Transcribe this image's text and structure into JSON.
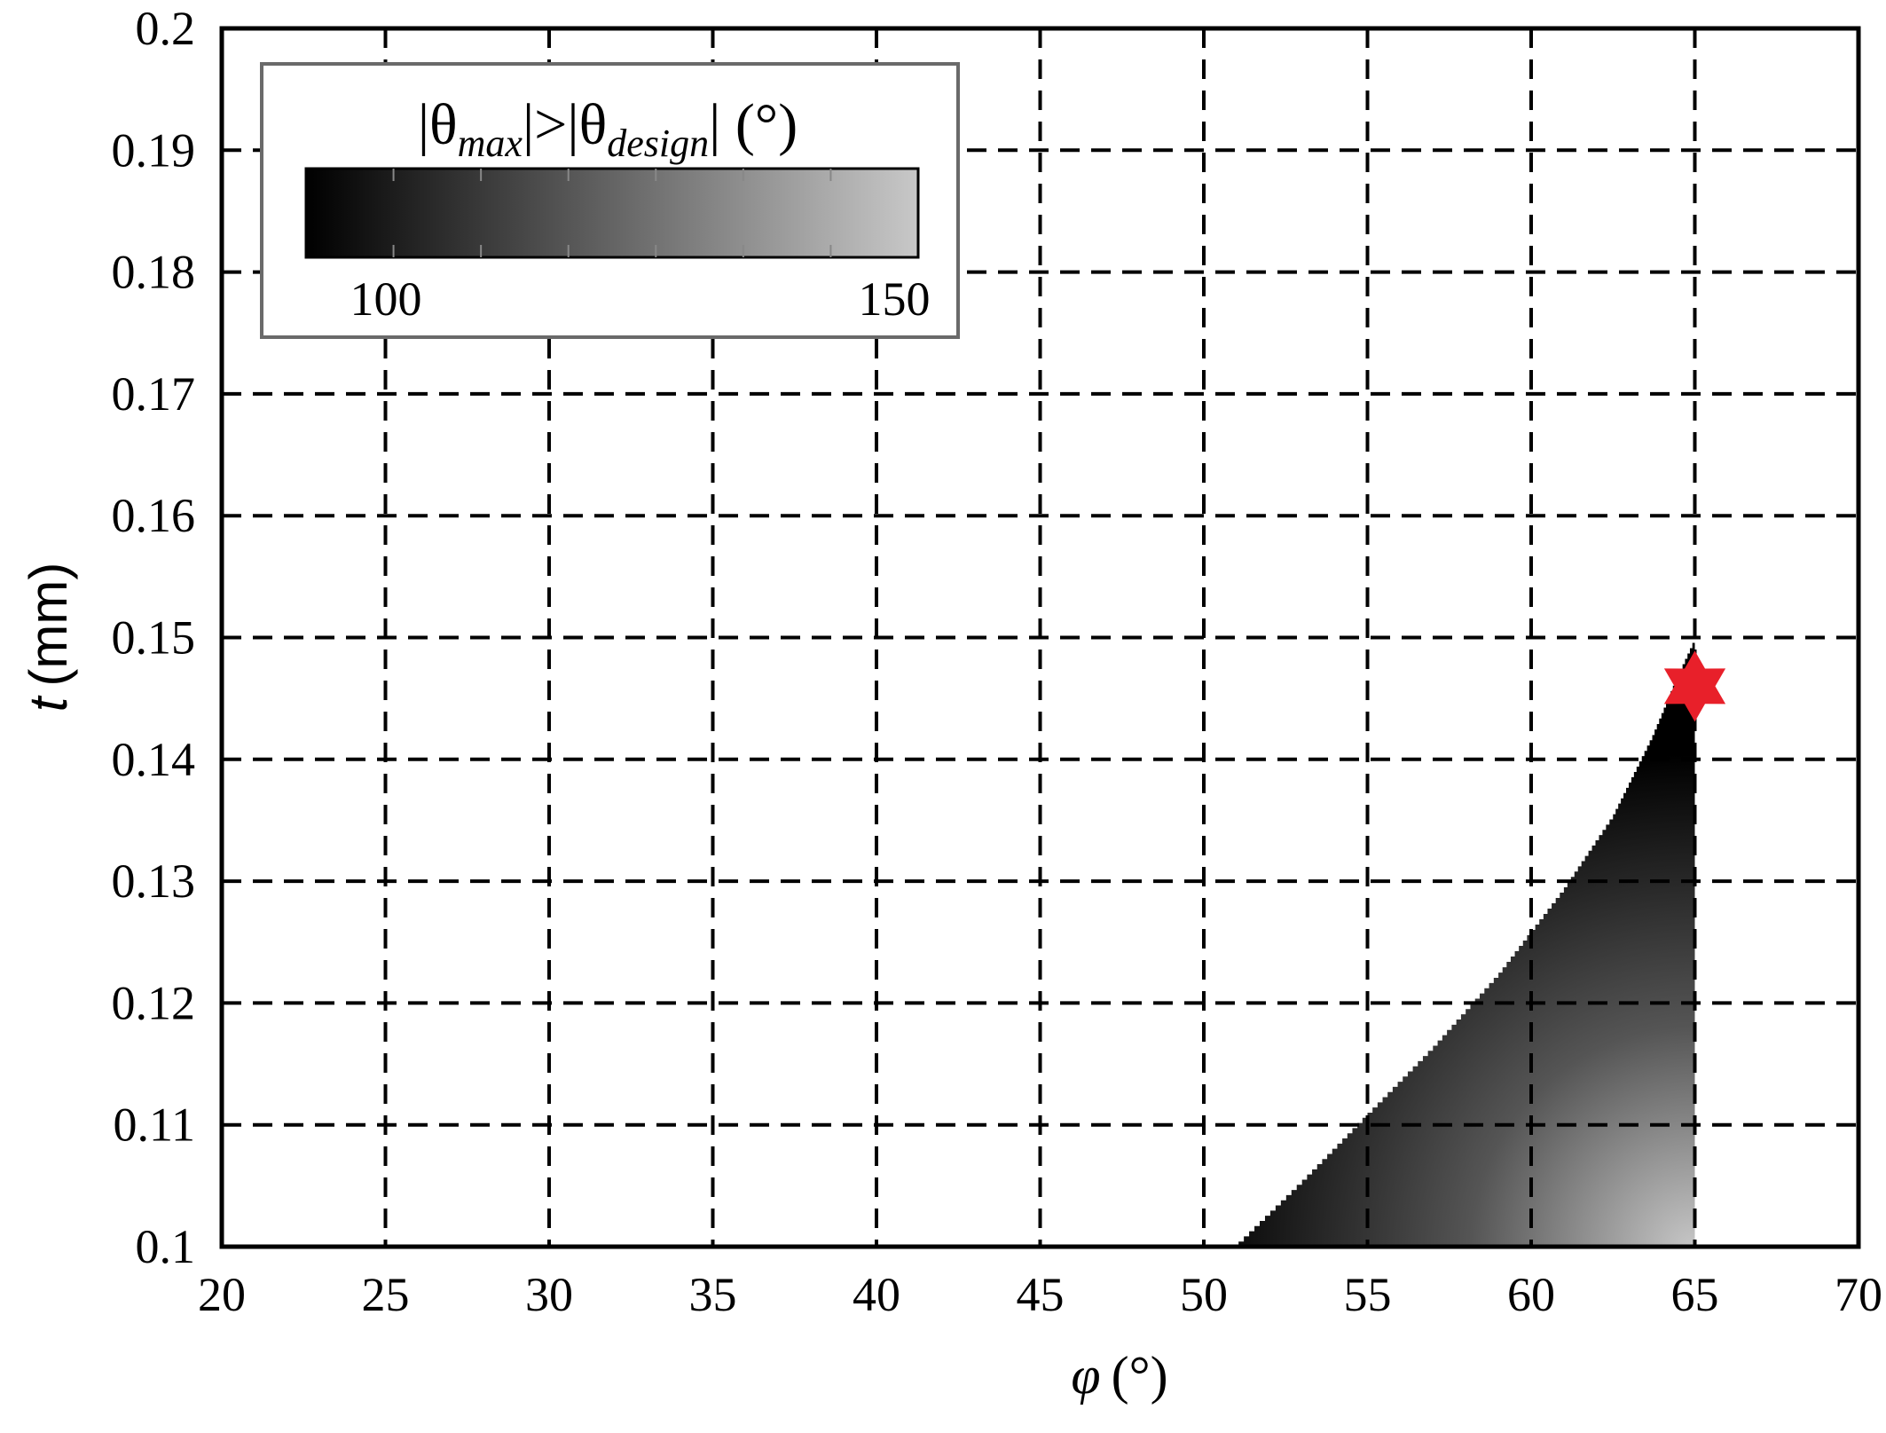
{
  "chart_data": {
    "type": "heatmap",
    "title": "",
    "xlabel": {
      "symbol": "φ",
      "unit": "(°)"
    },
    "ylabel": {
      "symbol": "t",
      "unit": "(mm)"
    },
    "xlim": [
      20,
      70
    ],
    "ylim": [
      0.1,
      0.2
    ],
    "x_ticks": [
      "20",
      "25",
      "30",
      "35",
      "40",
      "45",
      "50",
      "55",
      "60",
      "65",
      "70"
    ],
    "y_ticks": [
      "0.1",
      "0.11",
      "0.12",
      "0.13",
      "0.14",
      "0.15",
      "0.16",
      "0.17",
      "0.18",
      "0.19",
      "0.2"
    ],
    "grid": true,
    "colorbar": {
      "title_prefix": "|θ",
      "title_sub1": "max",
      "title_mid": "|>|θ",
      "title_sub2": "design",
      "title_suffix": "| (°)",
      "min_label": "100",
      "max_label": "150",
      "range": [
        100,
        150
      ],
      "colormap": "gray",
      "placement": "top-left"
    },
    "region_boundary": [
      {
        "phi": 50.9,
        "t": 0.1
      },
      {
        "phi": 53.0,
        "t": 0.1055
      },
      {
        "phi": 55.0,
        "t": 0.111
      },
      {
        "phi": 57.0,
        "t": 0.1165
      },
      {
        "phi": 59.0,
        "t": 0.1225
      },
      {
        "phi": 61.0,
        "t": 0.1295
      },
      {
        "phi": 62.5,
        "t": 0.1355
      },
      {
        "phi": 63.7,
        "t": 0.142
      },
      {
        "phi": 64.4,
        "t": 0.1465
      },
      {
        "phi": 65.0,
        "t": 0.15
      }
    ],
    "region_right_edge_phi": 65.0,
    "marker": {
      "phi": 65.0,
      "t": 0.146,
      "shape": "star",
      "color": "#e8202a"
    }
  }
}
